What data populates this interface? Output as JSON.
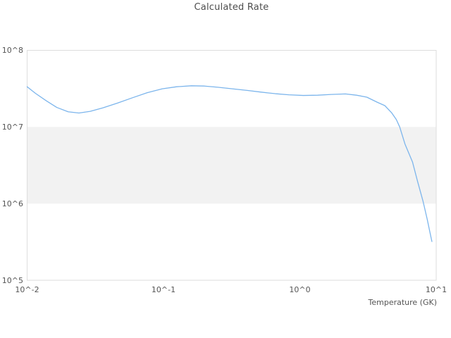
{
  "title": "Calculated Rate",
  "colors": {
    "background": "#ffffff",
    "line": "#7cb5ec",
    "plot_band": "#f2f2f2",
    "plot_border": "#dddddd",
    "title_text": "#4d4d4d",
    "tick_text": "#555555"
  },
  "chart_data": {
    "type": "line",
    "title": "Calculated Rate",
    "xlabel": "Temperature (GK)",
    "ylabel": "",
    "x_scale": "log",
    "y_scale": "log",
    "xlim": [
      0.01,
      10
    ],
    "ylim": [
      100000,
      100000000
    ],
    "grid": false,
    "legend": "none",
    "x_ticks": [
      {
        "label": "10^-2",
        "value": 0.01
      },
      {
        "label": "10^-1",
        "value": 0.1
      },
      {
        "label": "10^0",
        "value": 1
      },
      {
        "label": "10^1",
        "value": 10
      }
    ],
    "y_ticks": [
      {
        "label": "10^5",
        "value": 100000
      },
      {
        "label": "10^6",
        "value": 1000000
      },
      {
        "label": "10^7",
        "value": 10000000
      },
      {
        "label": "10^8",
        "value": 100000000
      }
    ],
    "plot_band": {
      "from": 1000000,
      "to": 10000000,
      "color": "#f2f2f2"
    },
    "series": [
      {
        "name": "Calculated Rate",
        "color": "#7cb5ec",
        "x": [
          0.01,
          0.0115,
          0.0138,
          0.0165,
          0.02,
          0.024,
          0.029,
          0.036,
          0.046,
          0.059,
          0.076,
          0.098,
          0.125,
          0.16,
          0.2,
          0.25,
          0.32,
          0.41,
          0.52,
          0.66,
          0.83,
          1.06,
          1.35,
          1.7,
          2.16,
          2.6,
          3.1,
          3.7,
          4.2,
          4.7,
          5.1,
          5.4,
          5.9,
          6.7,
          7.3,
          8.0,
          8.6,
          9.0,
          9.3
        ],
        "y": [
          33500000,
          27500000,
          22000000,
          18000000,
          15800000,
          15200000,
          16000000,
          17800000,
          20500000,
          24000000,
          28000000,
          31500000,
          33500000,
          34500000,
          34200000,
          33000000,
          31500000,
          30000000,
          28500000,
          27200000,
          26300000,
          25800000,
          26000000,
          26600000,
          27000000,
          26000000,
          24500000,
          21000000,
          19000000,
          15400000,
          12500000,
          10000000,
          6000000,
          3500000,
          1950000,
          1080000,
          620000,
          420000,
          320000
        ]
      }
    ]
  }
}
